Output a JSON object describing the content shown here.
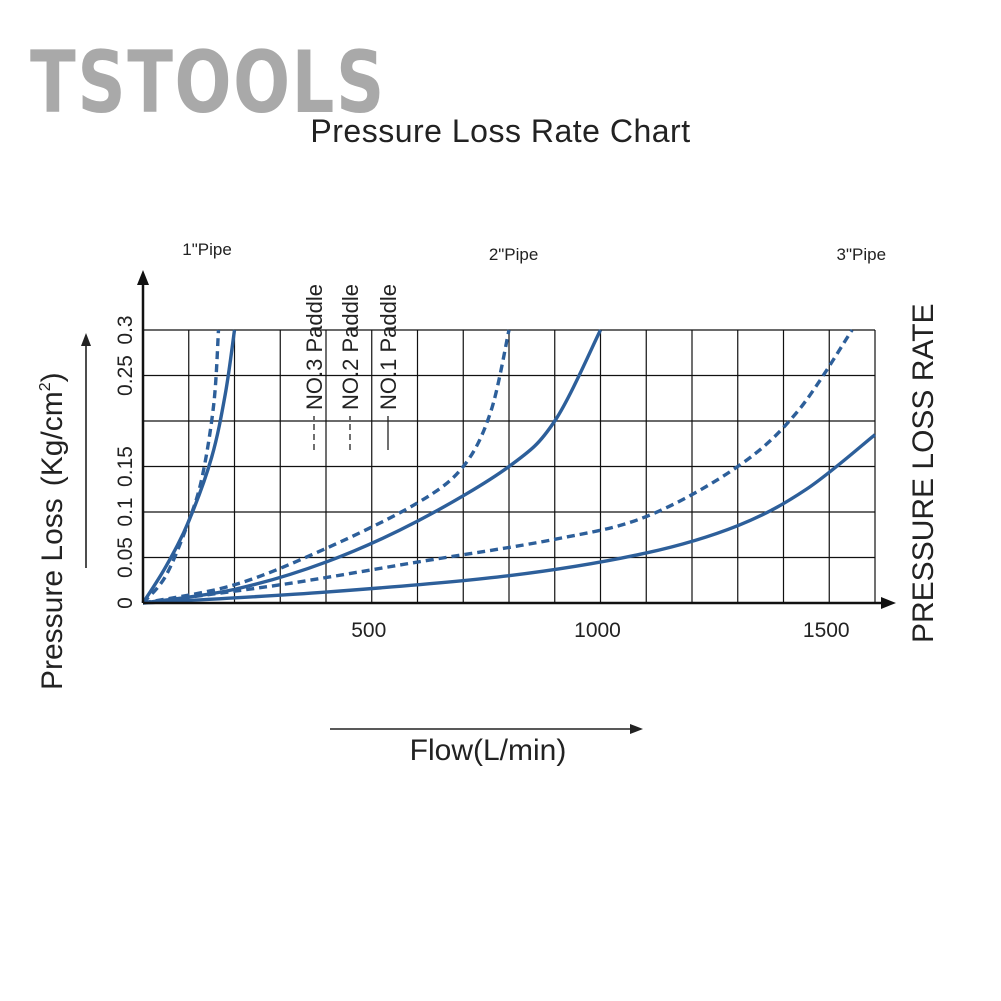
{
  "watermark": "TSTOOLS",
  "chart_data": {
    "type": "line",
    "title": "Pressure Loss Rate Chart",
    "xlabel": "Flow(L/min)",
    "ylabel": "Pressure Loss",
    "ylabel_unit_base": "(Kg/cm",
    "ylabel_unit_sup": "2",
    "ylabel_unit_end": ")",
    "right_label": "PRESSURE LOSS RATE",
    "xlim": [
      0,
      1600
    ],
    "ylim": [
      0,
      0.3
    ],
    "xticks": [
      {
        "value": 500,
        "label": "500"
      },
      {
        "value": 1000,
        "label": "1000"
      },
      {
        "value": 1500,
        "label": "1500"
      }
    ],
    "yticks": [
      {
        "value": 0,
        "label": "0"
      },
      {
        "value": 0.05,
        "label": "0.05"
      },
      {
        "value": 0.1,
        "label": "0.1"
      },
      {
        "value": 0.15,
        "label": "0.15"
      },
      {
        "value": 0.25,
        "label": "0.25"
      },
      {
        "value": 0.3,
        "label": "0.3"
      }
    ],
    "grid": true,
    "pipe_labels": [
      {
        "label": "1\"Pipe",
        "x": 140
      },
      {
        "label": "2\"Pipe",
        "x": 810
      },
      {
        "label": "3\"Pipe",
        "x": 1570
      }
    ],
    "legend": [
      {
        "label": "NO.3  Paddle",
        "style": "dash-dot"
      },
      {
        "label": "NO.2  Paddle",
        "style": "dash-dot"
      },
      {
        "label": "NO.1  Paddle",
        "style": "solid"
      }
    ],
    "color": "#2d5f9a",
    "series": [
      {
        "pipe": "1\"Pipe",
        "style": "solid",
        "x": [
          0,
          50,
          100,
          150,
          180,
          200
        ],
        "y": [
          0,
          0.04,
          0.09,
          0.16,
          0.23,
          0.3
        ]
      },
      {
        "pipe": "1\"Pipe",
        "style": "dashed",
        "x": [
          0,
          50,
          100,
          130,
          155,
          165
        ],
        "y": [
          0,
          0.03,
          0.09,
          0.14,
          0.22,
          0.3
        ]
      },
      {
        "pipe": "2\"Pipe",
        "style": "solid",
        "x": [
          0,
          200,
          400,
          600,
          800,
          900,
          1000
        ],
        "y": [
          0,
          0.015,
          0.045,
          0.09,
          0.15,
          0.2,
          0.3
        ]
      },
      {
        "pipe": "2\"Pipe",
        "style": "dashed",
        "x": [
          0,
          200,
          400,
          600,
          700,
          760,
          800
        ],
        "y": [
          0,
          0.02,
          0.06,
          0.11,
          0.15,
          0.21,
          0.3
        ]
      },
      {
        "pipe": "3\"Pipe",
        "style": "solid",
        "x": [
          0,
          400,
          800,
          1100,
          1300,
          1450,
          1600
        ],
        "y": [
          0,
          0.012,
          0.03,
          0.055,
          0.085,
          0.125,
          0.185
        ]
      },
      {
        "pipe": "3\"Pipe",
        "style": "dashed",
        "x": [
          0,
          300,
          600,
          900,
          1100,
          1300,
          1430,
          1550
        ],
        "y": [
          0,
          0.02,
          0.045,
          0.07,
          0.095,
          0.15,
          0.21,
          0.3
        ]
      }
    ]
  }
}
